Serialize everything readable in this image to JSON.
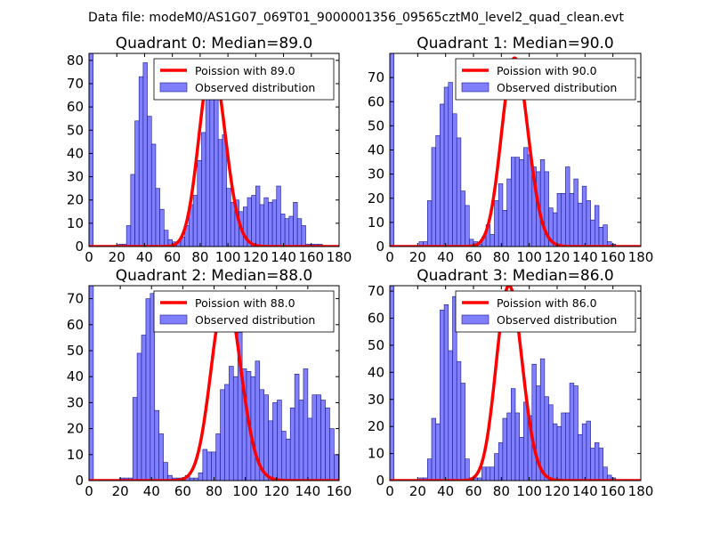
{
  "suptitle": "Data file: modeM0/AS1G07_069T01_9000001356_09565cztM0_level2_quad_clean.evt",
  "colors": {
    "bar_fill": "#7f7fff",
    "bar_edge": "#1a1a8c",
    "curve": "#ff0000"
  },
  "chart_data": [
    {
      "type": "bar",
      "title": "Quadrant 0: Median=89.0",
      "xlim": [
        0,
        180
      ],
      "ylim": [
        0,
        83
      ],
      "xticks": [
        0,
        20,
        40,
        60,
        80,
        100,
        120,
        140,
        160,
        180
      ],
      "yticks": [
        0,
        10,
        20,
        30,
        40,
        50,
        60,
        70,
        80
      ],
      "bin_width": 3,
      "bins_start": [
        0,
        21,
        24,
        27,
        30,
        33,
        36,
        39,
        42,
        45,
        48,
        51,
        54,
        57,
        60,
        63,
        66,
        69,
        72,
        75,
        78,
        81,
        84,
        87,
        90,
        93,
        96,
        99,
        102,
        105,
        108,
        111,
        114,
        117,
        120,
        123,
        126,
        129,
        132,
        135,
        138,
        141,
        144,
        147,
        150,
        153,
        156,
        159,
        162,
        165
      ],
      "counts": [
        83,
        1,
        1,
        9,
        31,
        54,
        73,
        79,
        56,
        44,
        25,
        16,
        7,
        3,
        2,
        2,
        4,
        9,
        18,
        22,
        37,
        49,
        66,
        76,
        80,
        46,
        48,
        25,
        19,
        20,
        15,
        17,
        21,
        22,
        26,
        18,
        21,
        19,
        20,
        26,
        14,
        12,
        13,
        19,
        12,
        9,
        1,
        1,
        1,
        1
      ],
      "poisson": {
        "label": "Poission with 89.0",
        "mu": 89.0,
        "peak": 79
      },
      "legend": {
        "curve_label": "Poission with 89.0",
        "bar_label": "Observed distribution",
        "location": "top-right"
      }
    },
    {
      "type": "bar",
      "title": "Quadrant 1: Median=90.0",
      "xlim": [
        0,
        180
      ],
      "ylim": [
        0,
        80
      ],
      "xticks": [
        0,
        20,
        40,
        60,
        80,
        100,
        120,
        140,
        160,
        180
      ],
      "yticks": [
        0,
        10,
        20,
        30,
        40,
        50,
        60,
        70
      ],
      "bin_width": 3,
      "bins_start": [
        0,
        21,
        24,
        27,
        30,
        33,
        36,
        39,
        42,
        45,
        48,
        51,
        54,
        57,
        60,
        63,
        66,
        69,
        72,
        75,
        78,
        81,
        84,
        87,
        90,
        93,
        96,
        99,
        102,
        105,
        108,
        111,
        114,
        117,
        120,
        123,
        126,
        129,
        132,
        135,
        138,
        141,
        144,
        147,
        150,
        153,
        156,
        159
      ],
      "counts": [
        80,
        2,
        2,
        19,
        41,
        46,
        59,
        66,
        68,
        55,
        45,
        23,
        17,
        3,
        2,
        1,
        4,
        9,
        5,
        19,
        26,
        15,
        28,
        37,
        37,
        36,
        41,
        38,
        33,
        31,
        36,
        31,
        16,
        14,
        22,
        22,
        33,
        22,
        28,
        18,
        25,
        19,
        11,
        17,
        8,
        9,
        2,
        1
      ],
      "poisson": {
        "label": "Poission with 90.0",
        "mu": 90.0,
        "peak": 78
      },
      "legend": {
        "curve_label": "Poission with 90.0",
        "bar_label": "Observed distribution",
        "location": "top-right"
      }
    },
    {
      "type": "bar",
      "title": "Quadrant 2: Median=88.0",
      "xlim": [
        0,
        160
      ],
      "ylim": [
        0,
        75
      ],
      "xticks": [
        0,
        20,
        40,
        60,
        80,
        100,
        120,
        140,
        160
      ],
      "yticks": [
        0,
        10,
        20,
        30,
        40,
        50,
        60,
        70
      ],
      "bin_width": 2.8,
      "bins_start": [
        0,
        19.6,
        22.4,
        25.2,
        28,
        30.8,
        33.6,
        36.4,
        39.2,
        42,
        44.8,
        47.6,
        50.4,
        53.2,
        56,
        58.8,
        61.6,
        64.4,
        67.2,
        70,
        72.8,
        75.6,
        78.4,
        81.2,
        84,
        86.8,
        89.6,
        92.4,
        95.2,
        98,
        100.8,
        103.6,
        106.4,
        109.2,
        112,
        114.8,
        117.6,
        120.4,
        123.2,
        126,
        128.8,
        131.6,
        134.4,
        137.2,
        140,
        142.8,
        145.6,
        148.4,
        151.2,
        154,
        156.8
      ],
      "counts": [
        75,
        1,
        1,
        1,
        32,
        49,
        56,
        70,
        72,
        27,
        18,
        7,
        2,
        1,
        1,
        1,
        2,
        1,
        1,
        3,
        12,
        11,
        11,
        18,
        35,
        37,
        44,
        40,
        57,
        43,
        42,
        40,
        46,
        35,
        33,
        23,
        30,
        31,
        19,
        16,
        28,
        41,
        31,
        43,
        24,
        33,
        33,
        31,
        28,
        20,
        10
      ],
      "poisson": {
        "label": "Poission with 88.0",
        "mu": 88.0,
        "peak": 72
      },
      "legend": {
        "curve_label": "Poission with 88.0",
        "bar_label": "Observed distribution",
        "location": "top-right"
      }
    },
    {
      "type": "bar",
      "title": "Quadrant 3: Median=86.0",
      "xlim": [
        0,
        180
      ],
      "ylim": [
        0,
        72
      ],
      "xticks": [
        0,
        20,
        40,
        60,
        80,
        100,
        120,
        140,
        160,
        180
      ],
      "yticks": [
        0,
        10,
        20,
        30,
        40,
        50,
        60,
        70
      ],
      "bin_width": 3,
      "bins_start": [
        0,
        21,
        24,
        27,
        30,
        33,
        36,
        39,
        42,
        45,
        48,
        51,
        54,
        57,
        60,
        63,
        66,
        69,
        72,
        75,
        78,
        81,
        84,
        87,
        90,
        93,
        96,
        99,
        102,
        105,
        108,
        111,
        114,
        117,
        120,
        123,
        126,
        129,
        132,
        135,
        138,
        141,
        144,
        147,
        150,
        153,
        156,
        159
      ],
      "counts": [
        72,
        1,
        1,
        8,
        23,
        21,
        63,
        65,
        48,
        68,
        44,
        36,
        8,
        1,
        1,
        1,
        5,
        5,
        5,
        10,
        14,
        23,
        25,
        34,
        25,
        16,
        29,
        24,
        43,
        35,
        45,
        31,
        28,
        21,
        20,
        25,
        25,
        36,
        35,
        17,
        21,
        22,
        12,
        14,
        12,
        5,
        2,
        1
      ],
      "poisson": {
        "label": "Poission with 86.0",
        "mu": 86.0,
        "peak": 72
      },
      "legend": {
        "curve_label": "Poission with 86.0",
        "bar_label": "Observed distribution",
        "location": "top-right"
      }
    }
  ]
}
